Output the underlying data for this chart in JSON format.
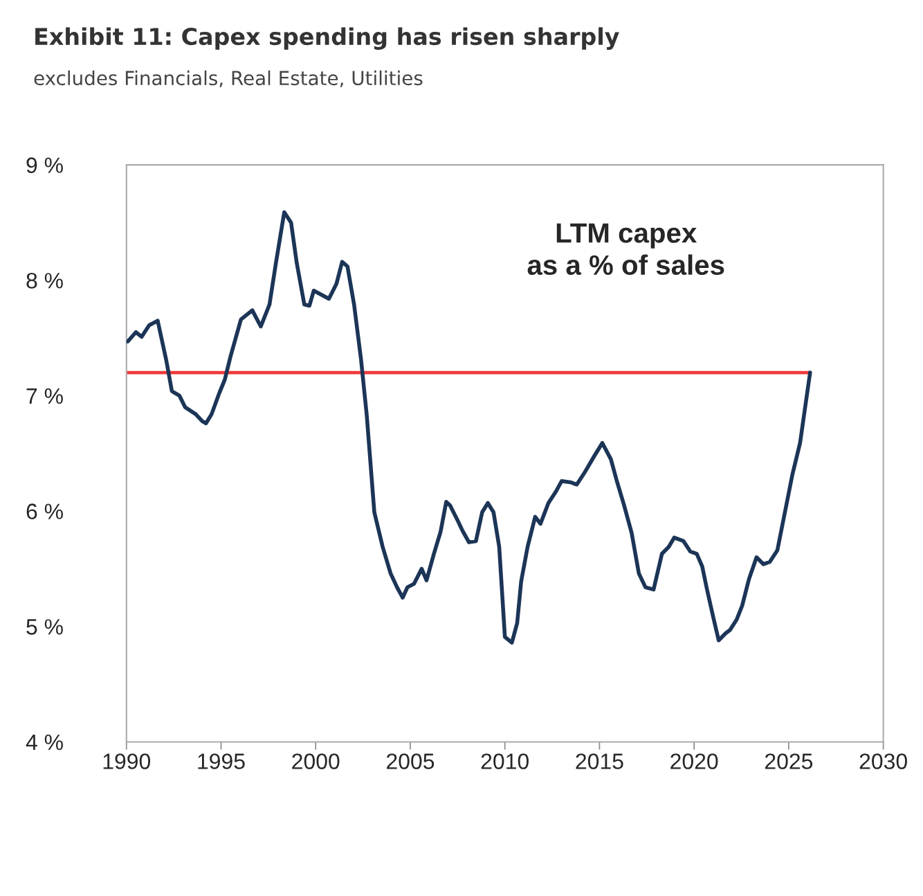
{
  "chart_data": {
    "type": "line",
    "title": "Exhibit 11: Capex spending has risen sharply",
    "subtitle": "excludes Financials, Real Estate, Utilities",
    "annotations": [
      "LTM capex\nas a % of sales"
    ],
    "series": [
      {
        "color": "#1c3557",
        "x": [
          1990.07,
          1990.5,
          1990.8,
          1991.2,
          1991.65,
          1992.1,
          1992.4,
          1992.8,
          1993.1,
          1993.66,
          1994.0,
          1994.2,
          1994.5,
          1994.9,
          1995.2,
          1995.5,
          1996.05,
          1996.65,
          1997.1,
          1997.56,
          1997.9,
          1998.34,
          1998.7,
          1999.0,
          1999.4,
          1999.67,
          1999.9,
          2000.7,
          2001.1,
          2001.4,
          2001.68,
          2002.03,
          2002.4,
          2002.7,
          2003.1,
          2003.54,
          2003.96,
          2004.3,
          2004.6,
          2004.85,
          2005.2,
          2005.6,
          2005.86,
          2006.25,
          2006.6,
          2006.9,
          2007.1,
          2007.5,
          2007.76,
          2008.1,
          2008.47,
          2008.8,
          2009.1,
          2009.4,
          2009.7,
          2010.0,
          2010.37,
          2010.65,
          2010.86,
          2011.2,
          2011.6,
          2011.88,
          2012.3,
          2012.7,
          2013.0,
          2013.46,
          2013.8,
          2014.2,
          2014.7,
          2015.15,
          2015.6,
          2015.9,
          2016.3,
          2016.7,
          2017.08,
          2017.43,
          2017.86,
          2018.3,
          2018.66,
          2018.95,
          2019.44,
          2019.8,
          2020.14,
          2020.43,
          2020.67,
          2021.0,
          2021.3,
          2021.66,
          2021.9,
          2022.25,
          2022.54,
          2022.9,
          2023.3,
          2023.66,
          2024.0,
          2024.4,
          2024.8,
          2025.2,
          2025.6,
          2026.13
        ],
        "values": [
          7.47,
          7.55,
          7.51,
          7.61,
          7.65,
          7.31,
          7.04,
          7.0,
          6.9,
          6.84,
          6.78,
          6.76,
          6.84,
          7.02,
          7.14,
          7.34,
          7.66,
          7.74,
          7.6,
          7.79,
          8.15,
          8.59,
          8.5,
          8.15,
          7.79,
          7.78,
          7.91,
          7.84,
          7.97,
          8.16,
          8.12,
          7.79,
          7.31,
          6.83,
          5.99,
          5.69,
          5.46,
          5.34,
          5.25,
          5.34,
          5.37,
          5.5,
          5.4,
          5.63,
          5.82,
          6.08,
          6.05,
          5.92,
          5.83,
          5.73,
          5.74,
          5.99,
          6.07,
          5.99,
          5.69,
          4.91,
          4.86,
          5.03,
          5.39,
          5.69,
          5.95,
          5.89,
          6.07,
          6.17,
          6.26,
          6.25,
          6.23,
          6.33,
          6.47,
          6.59,
          6.45,
          6.27,
          6.05,
          5.81,
          5.46,
          5.34,
          5.32,
          5.63,
          5.69,
          5.77,
          5.74,
          5.65,
          5.63,
          5.52,
          5.33,
          5.09,
          4.88,
          4.94,
          4.97,
          5.06,
          5.18,
          5.41,
          5.6,
          5.54,
          5.56,
          5.66,
          5.99,
          6.32,
          6.59,
          7.2
        ]
      }
    ],
    "ref_lines": [
      {
        "axis": "y",
        "value": 7.2,
        "color": "#ee3b3b"
      }
    ],
    "xlim": [
      1990,
      2030
    ],
    "xticks": [
      1990,
      1995,
      2000,
      2005,
      2010,
      2015,
      2020,
      2025,
      2030
    ],
    "ylim": [
      4,
      9
    ],
    "yticks": [
      {
        "value": 4,
        "label": "4 %"
      },
      {
        "value": 5,
        "label": "5 %"
      },
      {
        "value": 6,
        "label": "6 %"
      },
      {
        "value": 7,
        "label": "7 %"
      },
      {
        "value": 8,
        "label": "8 %"
      },
      {
        "value": 9,
        "label": "9 %"
      }
    ],
    "grid": false,
    "legend": false
  }
}
